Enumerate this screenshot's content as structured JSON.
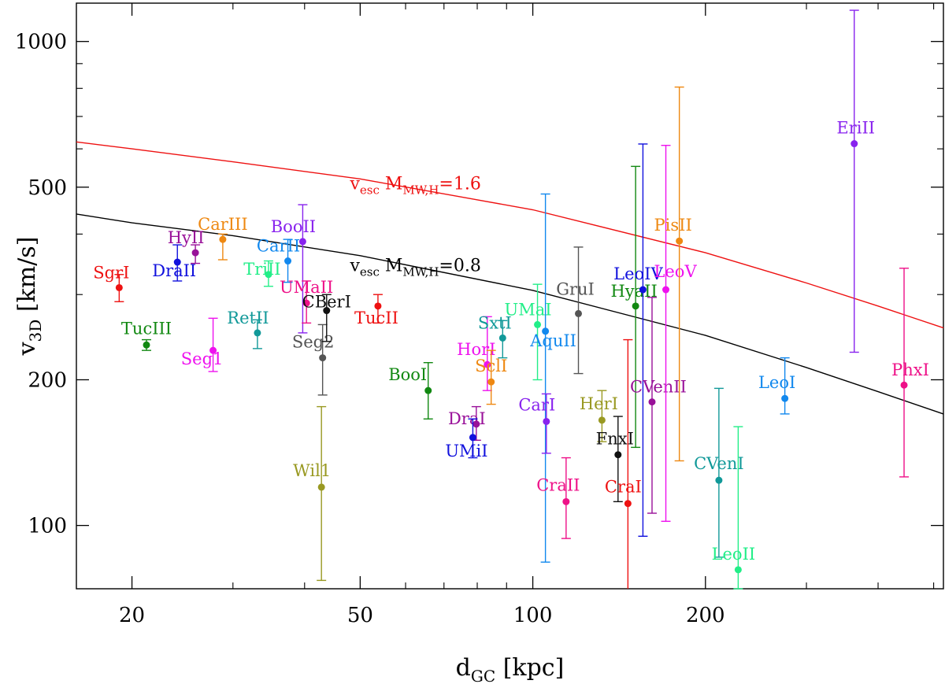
{
  "chart_data": {
    "type": "scatter",
    "xscale": "log",
    "yscale": "log",
    "xlim": [
      16,
      520
    ],
    "ylim": [
      74,
      1200
    ],
    "xlabel": {
      "main": "d",
      "sub": "GC",
      "unit": " [kpc]"
    },
    "ylabel": {
      "main": "v",
      "sub": "3D",
      "unit": " [km/s]"
    },
    "xticks": [
      {
        "value": 20,
        "label": "20"
      },
      {
        "value": 50,
        "label": "50"
      },
      {
        "value": 100,
        "label": "100"
      },
      {
        "value": 200,
        "label": "200"
      }
    ],
    "yticks": [
      {
        "value": 100,
        "label": "100"
      },
      {
        "value": 200,
        "label": "200"
      },
      {
        "value": 500,
        "label": "500"
      },
      {
        "value": 1000,
        "label": "1000"
      }
    ],
    "xminor": [
      30,
      40,
      60,
      70,
      80,
      90,
      300,
      400,
      500
    ],
    "yminor": [
      300,
      400,
      600,
      700,
      800,
      900
    ],
    "curves": [
      {
        "name": "vesc-1.6",
        "color": "#ee1111",
        "label_main": "v",
        "label_sub": "esc",
        "label_text": "  M",
        "label_sub2": "MW,H",
        "label_tail": "=1.6",
        "label_pos": [
          48,
          495
        ],
        "points": [
          [
            16,
            620
          ],
          [
            20,
            600
          ],
          [
            30,
            564
          ],
          [
            50,
            520
          ],
          [
            100,
            449
          ],
          [
            200,
            366
          ],
          [
            300,
            317
          ],
          [
            400,
            284
          ],
          [
            520,
            256
          ]
        ]
      },
      {
        "name": "vesc-0.8",
        "color": "#000000",
        "label_main": "v",
        "label_sub": "esc",
        "label_text": "  M",
        "label_sub2": "MW,H",
        "label_tail": "=0.8",
        "label_pos": [
          48,
          335
        ],
        "points": [
          [
            16,
            440
          ],
          [
            20,
            422
          ],
          [
            30,
            397
          ],
          [
            50,
            361
          ],
          [
            100,
            306
          ],
          [
            200,
            247
          ],
          [
            300,
            212
          ],
          [
            400,
            189
          ],
          [
            520,
            170
          ]
        ]
      }
    ],
    "points": [
      {
        "name": "SgrI",
        "x": 19,
        "y": 310,
        "lo": 290,
        "hi": 330,
        "color": "#ee1111",
        "label_dx": -10,
        "label_dy": -12
      },
      {
        "name": "TucIII",
        "x": 21.2,
        "y": 236,
        "lo": 230,
        "hi": 242,
        "color": "#118811",
        "label_dx": 0,
        "label_dy": -14
      },
      {
        "name": "DraII",
        "x": 24,
        "y": 350,
        "lo": 320,
        "hi": 380,
        "color": "#1111dd",
        "label_dx": -4,
        "label_dy": 18
      },
      {
        "name": "HyII",
        "x": 25.8,
        "y": 366,
        "lo": 348,
        "hi": 380,
        "color": "#991199",
        "label_dx": -12,
        "label_dy": -12
      },
      {
        "name": "Seg1",
        "x": 27.7,
        "y": 230,
        "lo": 208,
        "hi": 268,
        "color": "#ee11ee",
        "label_dx": -14,
        "label_dy": 18
      },
      {
        "name": "CarIII",
        "x": 28.8,
        "y": 390,
        "lo": 354,
        "hi": 400,
        "color": "#ee8811",
        "label_dx": 0,
        "label_dy": -12
      },
      {
        "name": "RetII",
        "x": 33.1,
        "y": 250,
        "lo": 232,
        "hi": 266,
        "color": "#119999",
        "label_dx": -12,
        "label_dy": -12
      },
      {
        "name": "TriII",
        "x": 34.6,
        "y": 330,
        "lo": 312,
        "hi": 352,
        "color": "#22ee88",
        "label_dx": -8,
        "label_dy": 0
      },
      {
        "name": "CarII",
        "x": 37.4,
        "y": 352,
        "lo": 318,
        "hi": 390,
        "color": "#1188ee",
        "label_dx": -12,
        "label_dy": -12
      },
      {
        "name": "BooII",
        "x": 39.7,
        "y": 386,
        "lo": 250,
        "hi": 460,
        "color": "#8822ee",
        "label_dx": -12,
        "label_dy": -12
      },
      {
        "name": "UMaII",
        "x": 40.3,
        "y": 288,
        "lo": 262,
        "hi": 320,
        "color": "#ee1188",
        "label_dx": 0,
        "label_dy": -13
      },
      {
        "name": "Seg2",
        "x": 43,
        "y": 222,
        "lo": 186,
        "hi": 260,
        "color": "#555555",
        "label_dx": -12,
        "label_dy": -13
      },
      {
        "name": "CBerI",
        "x": 43.7,
        "y": 278,
        "lo": 240,
        "hi": 300,
        "color": "#111111",
        "label_dx": 0,
        "label_dy": -4
      },
      {
        "name": "Wil1",
        "x": 42.8,
        "y": 120,
        "lo": 77,
        "hi": 176,
        "color": "#999922",
        "label_dx": -12,
        "label_dy": -14
      },
      {
        "name": "TucII",
        "x": 53.7,
        "y": 284,
        "lo": 262,
        "hi": 300,
        "color": "#ee1111",
        "label_dx": -2,
        "label_dy": 22
      },
      {
        "name": "BooI",
        "x": 65.7,
        "y": 190,
        "lo": 166,
        "hi": 217,
        "color": "#118811",
        "label_dx": -26,
        "label_dy": -13
      },
      {
        "name": "DraI",
        "x": 79.7,
        "y": 162,
        "lo": 150,
        "hi": 176,
        "color": "#991199",
        "label_dx": -12,
        "label_dy": 0
      },
      {
        "name": "UMiI",
        "x": 78.6,
        "y": 152,
        "lo": 138,
        "hi": 166,
        "color": "#1111dd",
        "label_dx": -8,
        "label_dy": 24
      },
      {
        "name": "HorI",
        "x": 83.3,
        "y": 215,
        "lo": 190,
        "hi": 270,
        "color": "#ee11ee",
        "label_dx": -14,
        "label_dy": -12
      },
      {
        "name": "SclI",
        "x": 84.6,
        "y": 198,
        "lo": 178,
        "hi": 230,
        "color": "#ee8811",
        "label_dx": 0,
        "label_dy": -13
      },
      {
        "name": "SxtI",
        "x": 88.6,
        "y": 244,
        "lo": 222,
        "hi": 265,
        "color": "#119999",
        "label_dx": -10,
        "label_dy": -12
      },
      {
        "name": "UMaI",
        "x": 101.9,
        "y": 260,
        "lo": 200,
        "hi": 315,
        "color": "#22ee88",
        "label_dx": -12,
        "label_dy": -12
      },
      {
        "name": "AquII",
        "x": 105.2,
        "y": 252,
        "lo": 84,
        "hi": 484,
        "color": "#1188ee",
        "label_dx": 10,
        "label_dy": 19
      },
      {
        "name": "CarI",
        "x": 105.6,
        "y": 164,
        "lo": 141,
        "hi": 187,
        "color": "#8822ee",
        "label_dx": -12,
        "label_dy": -14
      },
      {
        "name": "CraII",
        "x": 114.3,
        "y": 112,
        "lo": 94,
        "hi": 138,
        "color": "#ee1188",
        "label_dx": -10,
        "label_dy": -14
      },
      {
        "name": "GruI",
        "x": 120.1,
        "y": 274,
        "lo": 206,
        "hi": 376,
        "color": "#555555",
        "label_dx": -4,
        "label_dy": -24
      },
      {
        "name": "HerI",
        "x": 132,
        "y": 165,
        "lo": 149,
        "hi": 190,
        "color": "#999922",
        "label_dx": -4,
        "label_dy": -14
      },
      {
        "name": "FnxI",
        "x": 140.8,
        "y": 140,
        "lo": 112,
        "hi": 168,
        "color": "#111111",
        "label_dx": -4,
        "label_dy": -13
      },
      {
        "name": "CraI",
        "x": 146.5,
        "y": 111,
        "lo": 70,
        "hi": 242,
        "color": "#ee1111",
        "label_dx": -6,
        "label_dy": -14
      },
      {
        "name": "HyaII",
        "x": 151.1,
        "y": 284,
        "lo": 145,
        "hi": 552,
        "color": "#118811",
        "label_dx": -2,
        "label_dy": -12
      },
      {
        "name": "LeoIV",
        "x": 155.6,
        "y": 307,
        "lo": 95,
        "hi": 614,
        "color": "#1111dd",
        "label_dx": -6,
        "label_dy": -13
      },
      {
        "name": "CVenII",
        "x": 161.4,
        "y": 180,
        "lo": 106,
        "hi": 296,
        "color": "#991199",
        "label_dx": 8,
        "label_dy": -12
      },
      {
        "name": "LeoV",
        "x": 170.6,
        "y": 307,
        "lo": 102,
        "hi": 610,
        "color": "#ee11ee",
        "label_dx": 12,
        "label_dy": -16
      },
      {
        "name": "PisII",
        "x": 180.1,
        "y": 387,
        "lo": 136,
        "hi": 805,
        "color": "#ee8811",
        "label_dx": -8,
        "label_dy": -13
      },
      {
        "name": "CVenI",
        "x": 211.1,
        "y": 124,
        "lo": 86,
        "hi": 192,
        "color": "#119999",
        "label_dx": 0,
        "label_dy": -14
      },
      {
        "name": "LeoII",
        "x": 228.1,
        "y": 81,
        "lo": 74,
        "hi": 160,
        "color": "#22ee88",
        "label_dx": -6,
        "label_dy": -13
      },
      {
        "name": "LeoI",
        "x": 275.1,
        "y": 183,
        "lo": 170,
        "hi": 222,
        "color": "#1188ee",
        "label_dx": -10,
        "label_dy": -13
      },
      {
        "name": "EriII",
        "x": 363.5,
        "y": 615,
        "lo": 228,
        "hi": 1160,
        "color": "#8822ee",
        "label_dx": 2,
        "label_dy": -13
      },
      {
        "name": "PhxI",
        "x": 444,
        "y": 195,
        "lo": 126,
        "hi": 340,
        "color": "#ee1188",
        "label_dx": 8,
        "label_dy": -12
      }
    ]
  }
}
